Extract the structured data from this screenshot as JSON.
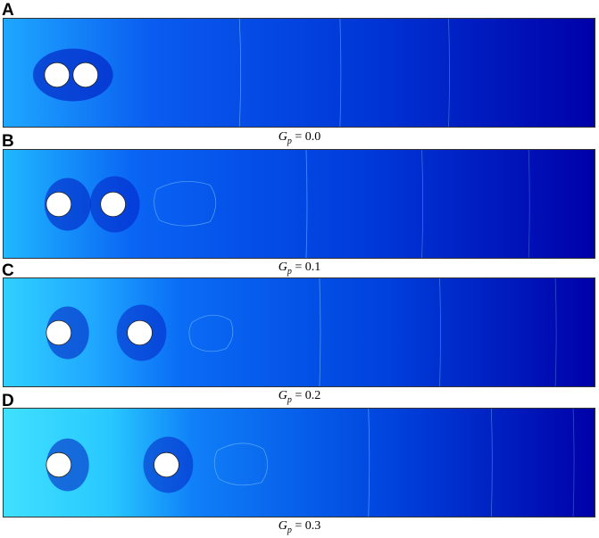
{
  "panels": [
    {
      "letter": "A",
      "gp_value": "0.0",
      "gp_var": "G",
      "gp_sub": "p",
      "gp_eq": " = "
    },
    {
      "letter": "B",
      "gp_value": "0.1",
      "gp_var": "G",
      "gp_sub": "p",
      "gp_eq": " = "
    },
    {
      "letter": "C",
      "gp_value": "0.2",
      "gp_var": "G",
      "gp_sub": "p",
      "gp_eq": " = "
    },
    {
      "letter": "D",
      "gp_value": "0.3",
      "gp_var": "G",
      "gp_sub": "p",
      "gp_eq": " = "
    }
  ],
  "colors": {
    "hot": "#d40000",
    "warm": "#ffb000",
    "mid": "#2ee0ff",
    "cool": "#0050ff",
    "cold": "#0000b4",
    "particle": "#ffffff"
  }
}
